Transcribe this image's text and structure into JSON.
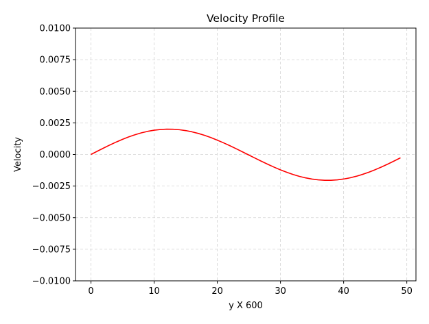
{
  "chart_data": {
    "type": "line",
    "title": "Velocity Profile",
    "xlabel": "y X 600",
    "ylabel": "Velocity",
    "xlim": [
      -2.45,
      51.45
    ],
    "ylim": [
      -0.01,
      0.01
    ],
    "xticks": [
      0,
      10,
      20,
      30,
      40,
      50
    ],
    "xtick_labels": [
      "0",
      "10",
      "20",
      "30",
      "40",
      "50"
    ],
    "yticks": [
      -0.01,
      -0.0075,
      -0.005,
      -0.0025,
      0.0,
      0.0025,
      0.005,
      0.0075,
      0.01
    ],
    "ytick_labels": [
      "−0.0100",
      "−0.0075",
      "−0.0050",
      "−0.0025",
      "0.0000",
      "0.0025",
      "0.0050",
      "0.0075",
      "0.0100"
    ],
    "grid": true,
    "series": [
      {
        "color": "#ff0000",
        "x": [
          0,
          1,
          2,
          3,
          4,
          5,
          6,
          7,
          8,
          9,
          10,
          11,
          12,
          13,
          14,
          15,
          16,
          17,
          18,
          19,
          20,
          21,
          22,
          23,
          24,
          25,
          26,
          27,
          28,
          29,
          30,
          31,
          32,
          33,
          34,
          35,
          36,
          37,
          38,
          39,
          40,
          41,
          42,
          43,
          44,
          45,
          46,
          47,
          48,
          49
        ],
        "y": [
          0.0,
          0.000257,
          0.000509,
          0.000754,
          0.000985,
          0.0012,
          0.001395,
          0.001567,
          0.001713,
          0.001831,
          0.001919,
          0.001977,
          0.002003,
          0.001996,
          0.001958,
          0.001889,
          0.00179,
          0.001663,
          0.001509,
          0.001332,
          0.001134,
          0.000918,
          0.00069,
          0.00045,
          0.000204,
          -4.6e-05,
          -0.000296,
          -0.000541,
          -0.000779,
          -0.001006,
          -0.001218,
          -0.001412,
          -0.001585,
          -0.001733,
          -0.001855,
          -0.001948,
          -0.002011,
          -0.002042,
          -0.002041,
          -0.002007,
          -0.001943,
          -0.001849,
          -0.001725,
          -0.001575,
          -0.0014,
          -0.001203,
          -0.000988,
          -0.000757,
          -0.000514,
          -0.000263
        ]
      }
    ]
  }
}
